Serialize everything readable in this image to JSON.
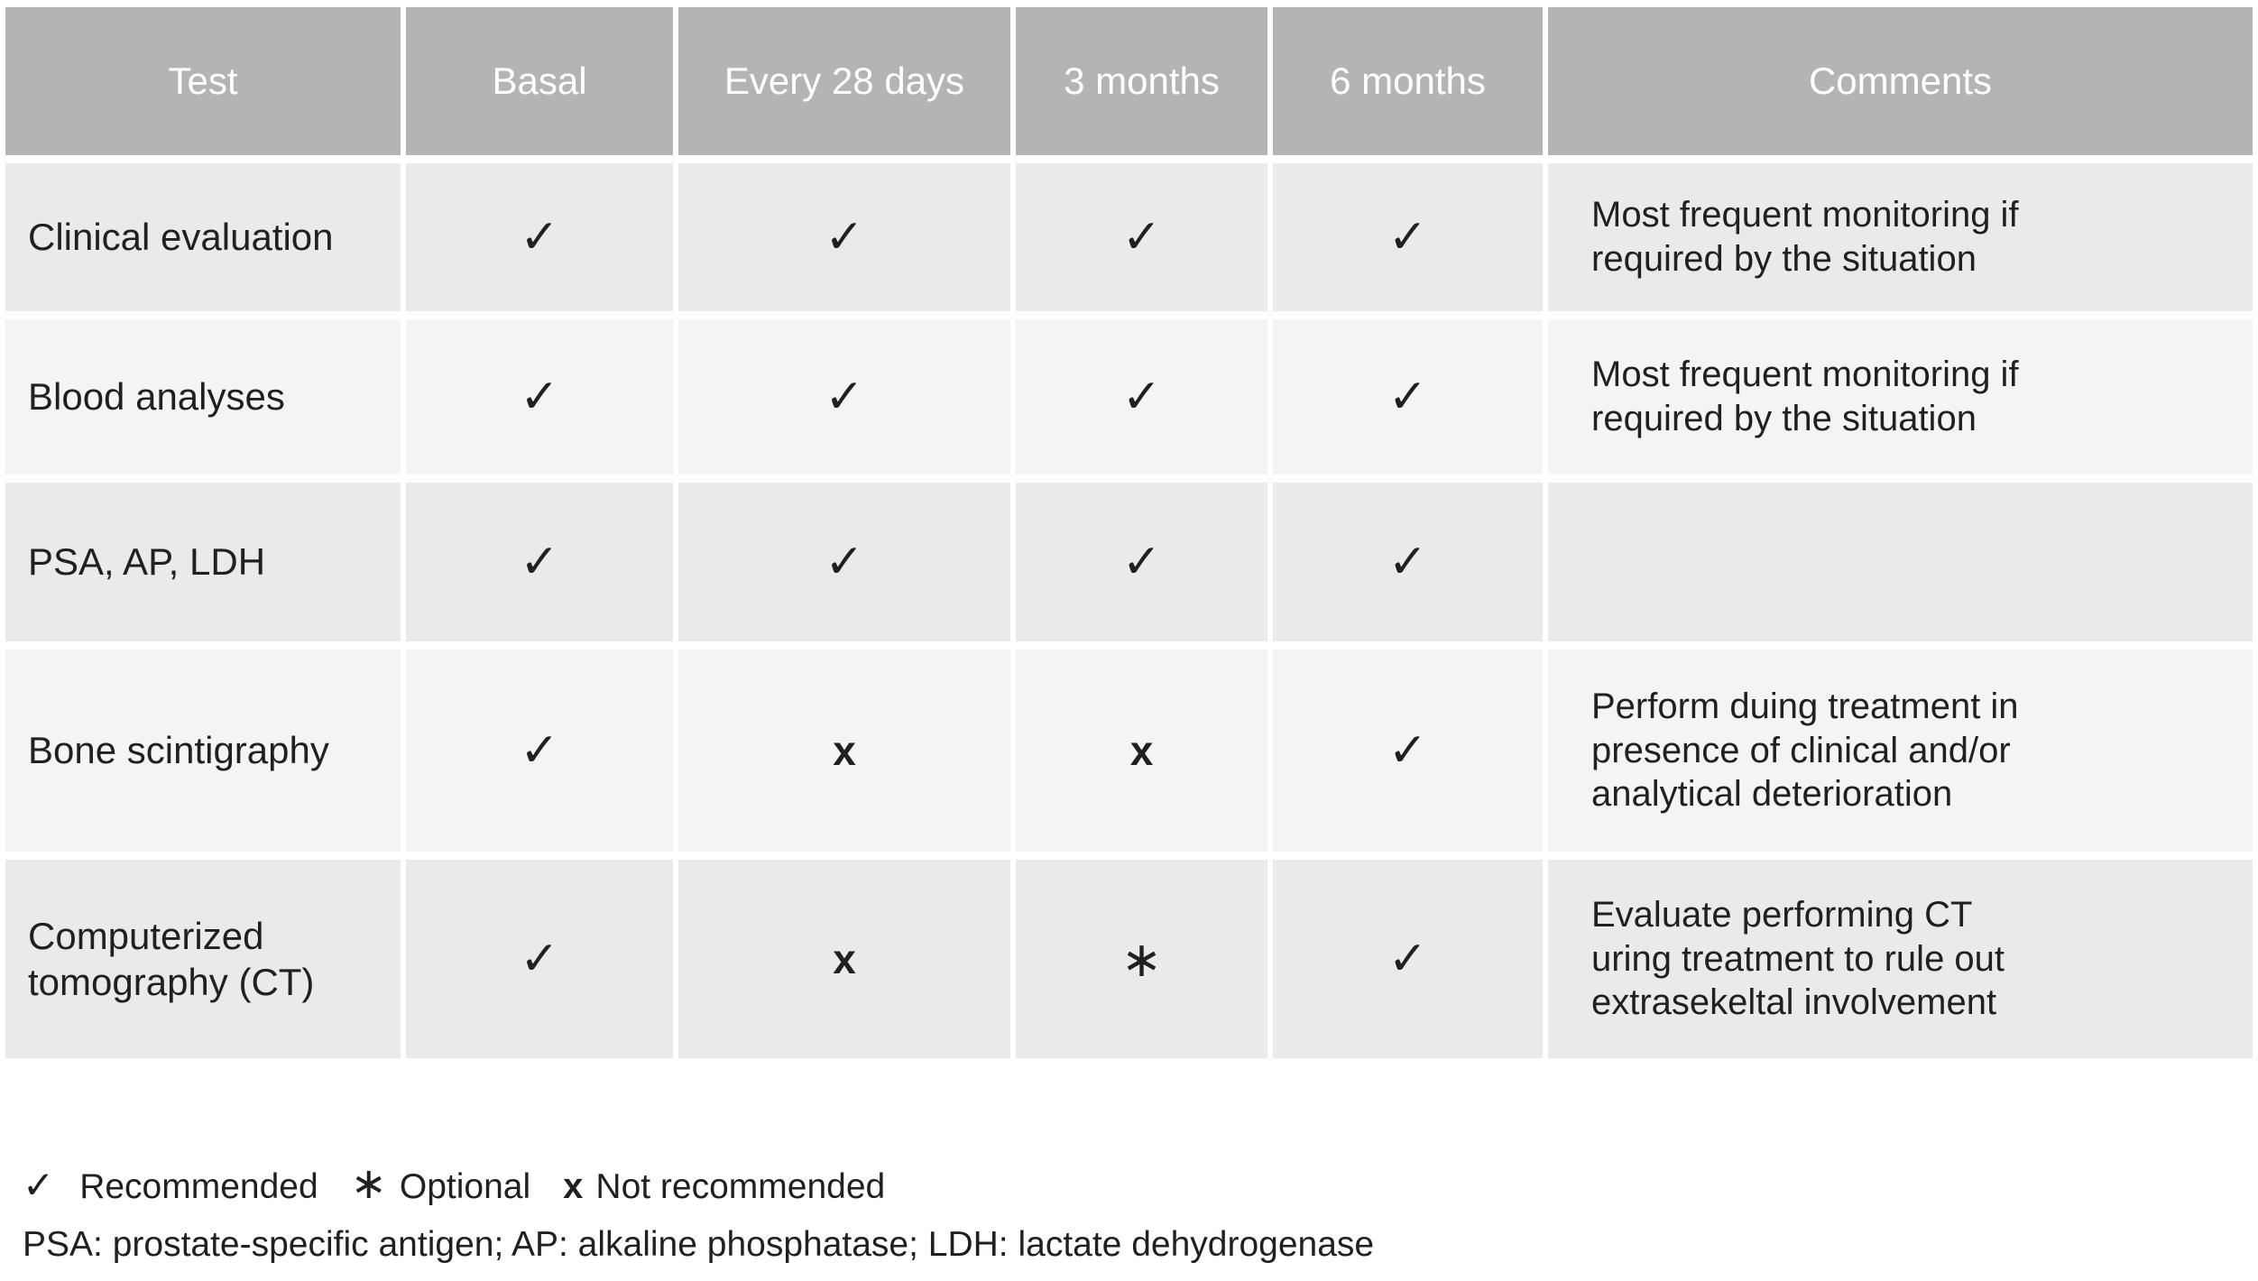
{
  "table": {
    "headers": {
      "test": "Test",
      "basal": "Basal",
      "every28": "Every 28 days",
      "m3": "3 months",
      "m6": "6 months",
      "comments": "Comments"
    },
    "rows": [
      {
        "test": "Clinical evaluation",
        "basal": "✓",
        "every28": "✓",
        "m3": "✓",
        "m6": "✓",
        "comments": "Most frequent monitoring if\nrequired by the situation"
      },
      {
        "test": "Blood analyses",
        "basal": "✓",
        "every28": "✓",
        "m3": "✓",
        "m6": "✓",
        "comments": "Most frequent monitoring if\nrequired by the situation"
      },
      {
        "test": "PSA, AP, LDH",
        "basal": "✓",
        "every28": "✓",
        "m3": "✓",
        "m6": "✓",
        "comments": ""
      },
      {
        "test": "Bone scintigraphy",
        "basal": "✓",
        "every28": "x",
        "m3": "x",
        "m6": "✓",
        "comments": "Perform duing treatment in\npresence of clinical and/or\nanalytical deterioration"
      },
      {
        "test": "Computerized tomography (CT)",
        "basal": "✓",
        "every28": "x",
        "m3": "∗",
        "m6": "✓",
        "comments": "Evaluate performing CT\nuring treatment to rule out\nextrasekeltal involvement"
      }
    ]
  },
  "legend": {
    "check_symbol": "✓",
    "check_label": "Recommended",
    "asterisk_symbol": "∗",
    "asterisk_label": "Optional",
    "cross_symbol": "x",
    "cross_label": "Not recommended",
    "abbreviations": "PSA: prostate-specific antigen; AP: alkaline phosphatase; LDH: lactate dehydrogenase"
  },
  "colors": {
    "header_bg": "#b3b4b6",
    "row_odd_bg": "#e9eaec",
    "row_even_bg": "#f4f4f6",
    "header_text": "#ffffff",
    "body_text": "#231f20"
  }
}
